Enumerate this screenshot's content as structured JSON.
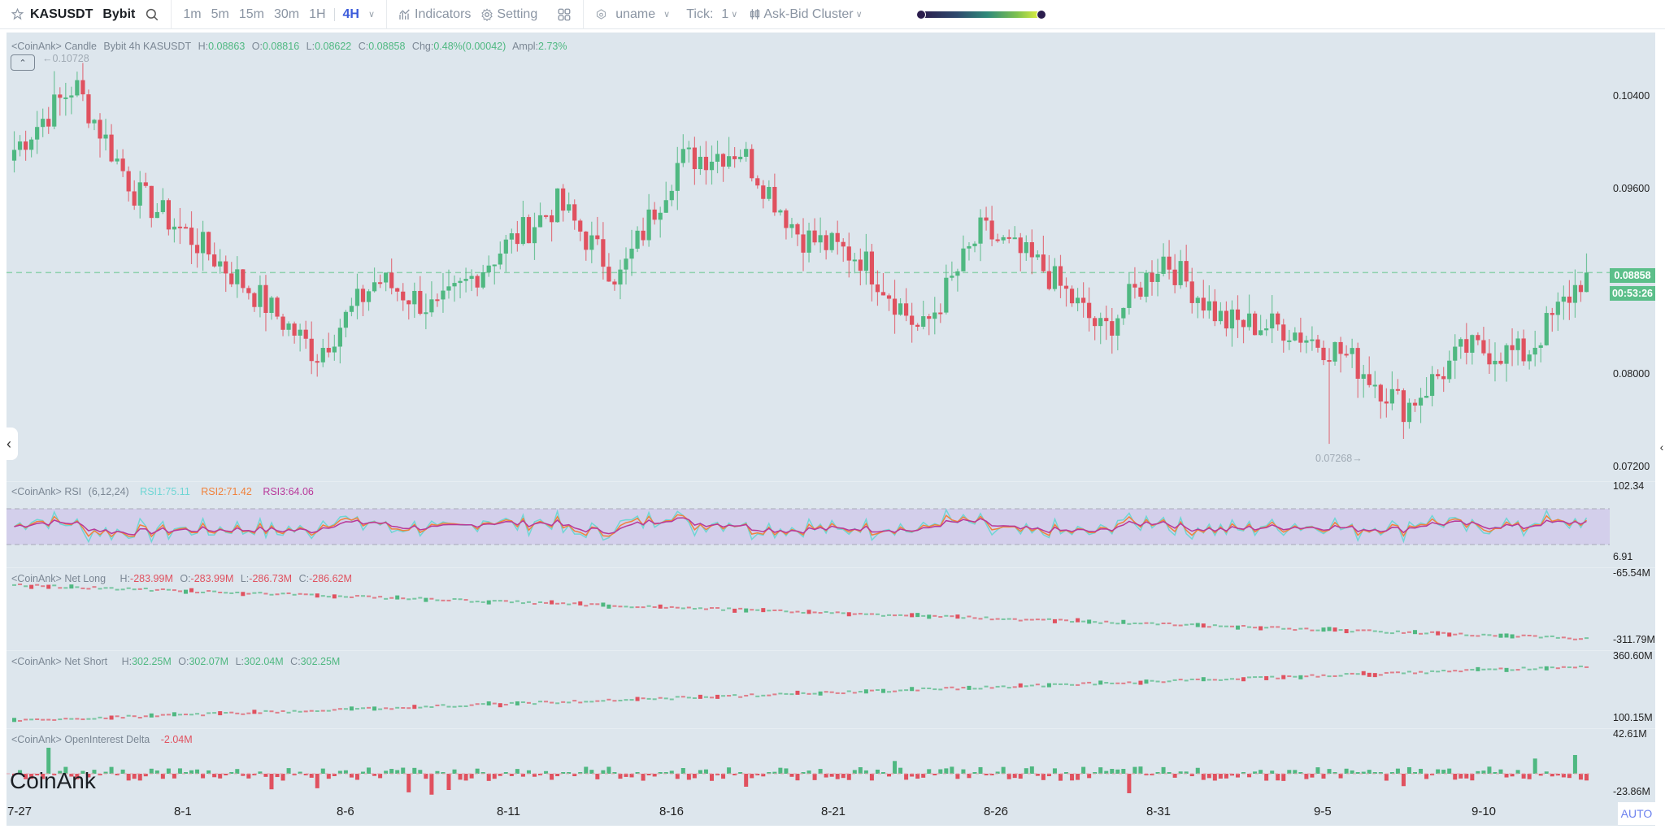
{
  "toolbar": {
    "symbol": "KASUSDT",
    "exchange": "Bybit",
    "intervals": [
      "1m",
      "5m",
      "15m",
      "30m",
      "1H"
    ],
    "active_interval": "4H",
    "indicators_label": "Indicators",
    "setting_label": "Setting",
    "user_label": "uname",
    "tick_label": "Tick:",
    "tick_value": "1",
    "cluster_label": "Ask-Bid Cluster"
  },
  "candle_pane": {
    "source": "<CoinAnk> Candle",
    "desc": "Bybit 4h KASUSDT",
    "h_label": "H:",
    "h": "0.08863",
    "o_label": "O:",
    "o": "0.08816",
    "l_label": "L:",
    "l": "0.08622",
    "c_label": "C:",
    "c": "0.08858",
    "chg_label": "Chg:",
    "chg": "0.48%(0.00042)",
    "ampl_label": "Ampl:",
    "ampl": "2.73%",
    "max_label": "0.10728",
    "min_label": "0.07268",
    "last_price": "0.08858",
    "countdown": "00:53:26",
    "y_ticks": [
      "0.10400",
      "0.09600",
      "0.08000",
      "0.07200"
    ]
  },
  "rsi_pane": {
    "source": "<CoinAnk> RSI",
    "params": "(6,12,24)",
    "rsi1": "RSI1:75.11",
    "rsi2": "RSI2:71.42",
    "rsi3": "RSI3:64.06",
    "y_top": "102.34",
    "y_bottom": "6.91"
  },
  "net_long_pane": {
    "source": "<CoinAnk> Net Long",
    "h_label": "H:",
    "h": "-283.99M",
    "o_label": "O:",
    "o": "-283.99M",
    "l_label": "L:",
    "l": "-286.73M",
    "c_label": "C:",
    "c": "-286.62M",
    "y_top": "-65.54M",
    "y_bottom": "-311.79M"
  },
  "net_short_pane": {
    "source": "<CoinAnk> Net Short",
    "h_label": "H:",
    "h": "302.25M",
    "o_label": "O:",
    "o": "302.07M",
    "l_label": "L:",
    "l": "302.04M",
    "c_label": "C:",
    "c": "302.25M",
    "y_top": "360.60M",
    "y_bottom": "100.15M"
  },
  "oi_pane": {
    "source": "<CoinAnk> OpenInterest Delta",
    "value": "-2.04M",
    "y_top": "42.61M",
    "y_bottom": "-23.86M"
  },
  "x_axis": {
    "labels": [
      "7-27",
      "8-1",
      "8-6",
      "8-11",
      "8-16",
      "8-21",
      "8-26",
      "8-31",
      "9-5",
      "9-10"
    ]
  },
  "watermark": "CoinAnk",
  "auto_label": "AUTO",
  "colors": {
    "up": "#4fb881",
    "down": "#e0515f",
    "background": "#dde6ed",
    "rsi1": "#6fd6d4",
    "rsi2": "#f0823c",
    "rsi3": "#b8389a",
    "accent": "#3b5bdb"
  },
  "chart_data": {
    "type": "candlestick",
    "title": "Bybit 4h KASUSDT",
    "price_path_keypoints": [
      {
        "date": "7-27",
        "price": 0.1
      },
      {
        "date": "7-28",
        "price": 0.106
      },
      {
        "date": "7-29",
        "price": 0.096
      },
      {
        "date": "7-31",
        "price": 0.0915
      },
      {
        "date": "8-1",
        "price": 0.0865
      },
      {
        "date": "8-3",
        "price": 0.081
      },
      {
        "date": "8-5",
        "price": 0.088
      },
      {
        "date": "8-7",
        "price": 0.085
      },
      {
        "date": "8-9",
        "price": 0.0905
      },
      {
        "date": "8-11",
        "price": 0.095
      },
      {
        "date": "8-13",
        "price": 0.088
      },
      {
        "date": "8-14",
        "price": 0.099
      },
      {
        "date": "8-15",
        "price": 0.1
      },
      {
        "date": "8-16",
        "price": 0.092
      },
      {
        "date": "8-18",
        "price": 0.09
      },
      {
        "date": "8-20",
        "price": 0.083
      },
      {
        "date": "8-22",
        "price": 0.0925
      },
      {
        "date": "8-24",
        "price": 0.089
      },
      {
        "date": "8-26",
        "price": 0.083
      },
      {
        "date": "8-28",
        "price": 0.09
      },
      {
        "date": "8-30",
        "price": 0.084
      },
      {
        "date": "9-2",
        "price": 0.0835
      },
      {
        "date": "9-5",
        "price": 0.081
      },
      {
        "date": "9-6",
        "price": 0.076
      },
      {
        "date": "9-8",
        "price": 0.0815
      },
      {
        "date": "9-10",
        "price": 0.081
      },
      {
        "date": "9-12",
        "price": 0.0886
      }
    ],
    "ohlc_last": {
      "open": 0.08816,
      "high": 0.08863,
      "low": 0.08622,
      "close": 0.08858
    },
    "period_high": 0.10728,
    "period_low": 0.07268,
    "ylim": [
      0.0705,
      0.108
    ],
    "y_ticks": [
      0.104,
      0.096,
      0.08,
      0.072
    ],
    "x_ticks": [
      "7-27",
      "8-1",
      "8-6",
      "8-11",
      "8-16",
      "8-21",
      "8-26",
      "8-31",
      "9-5",
      "9-10"
    ],
    "indicators": {
      "rsi": {
        "params": [
          6,
          12,
          24
        ],
        "last": {
          "rsi1": 75.11,
          "rsi2": 71.42,
          "rsi3": 64.06
        },
        "ylim": [
          6.91,
          102.34
        ],
        "band": [
          30,
          70
        ]
      },
      "net_long": {
        "last": {
          "h": -283.99,
          "o": -283.99,
          "l": -286.73,
          "c": -286.62
        },
        "unit": "M",
        "ylim": [
          -311.79,
          -65.54
        ],
        "trend": "declining from ~-100M to ~-287M"
      },
      "net_short": {
        "last": {
          "h": 302.25,
          "o": 302.07,
          "l": 302.04,
          "c": 302.25
        },
        "unit": "M",
        "ylim": [
          100.15,
          360.6
        ],
        "trend": "rising from ~110M to ~302M"
      },
      "oi_delta": {
        "last": -2.04,
        "unit": "M",
        "ylim": [
          -23.86,
          42.61
        ]
      }
    }
  }
}
